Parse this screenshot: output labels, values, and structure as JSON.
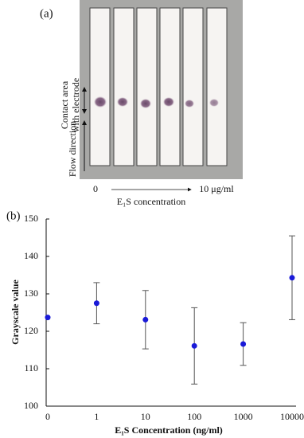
{
  "panel_a": {
    "label": "(a)",
    "contact_lines": [
      "Contact area",
      "with electrode"
    ],
    "flow_label": "Flow direction",
    "conc_low": "0",
    "conc_high": "10 μg/ml",
    "conc_axis": "E₁S concentration"
  },
  "panel_b_label": "(b)",
  "chart_data": {
    "type": "scatter",
    "x_label": "E₁S Concentration (ng/ml)",
    "y_label": "Grayscale value",
    "categories": [
      "0",
      "1",
      "10",
      "100",
      "1000",
      "10000"
    ],
    "values": [
      123.7,
      127.5,
      123.1,
      116.1,
      116.6,
      134.3
    ],
    "errors": [
      null,
      5.5,
      7.8,
      10.2,
      5.7,
      11.2
    ],
    "color": "#1a1ad8",
    "ylim": [
      100,
      150
    ],
    "yticks": [
      100,
      110,
      120,
      130,
      140,
      150
    ]
  }
}
